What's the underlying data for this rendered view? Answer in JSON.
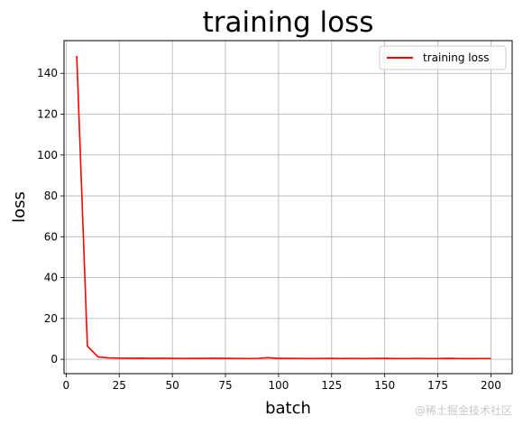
{
  "chart_data": {
    "type": "line",
    "title": "training loss",
    "xlabel": "batch",
    "ylabel": "loss",
    "xlim": [
      -1,
      210
    ],
    "ylim": [
      -7,
      156
    ],
    "xticks": [
      0,
      25,
      50,
      75,
      100,
      125,
      150,
      175,
      200
    ],
    "yticks": [
      0,
      20,
      40,
      60,
      80,
      100,
      120,
      140
    ],
    "grid": true,
    "legend_position": "top-right",
    "series": [
      {
        "name": "training loss",
        "color": "#ff0000",
        "x": [
          5,
          10,
          15,
          20,
          25,
          30,
          35,
          40,
          45,
          50,
          55,
          60,
          65,
          70,
          75,
          80,
          85,
          90,
          95,
          100,
          105,
          110,
          115,
          120,
          125,
          130,
          135,
          140,
          145,
          150,
          155,
          160,
          165,
          170,
          175,
          180,
          185,
          190,
          195,
          200
        ],
        "y": [
          148.5,
          6.5,
          1.2,
          0.7,
          0.6,
          0.55,
          0.6,
          0.5,
          0.55,
          0.5,
          0.45,
          0.5,
          0.5,
          0.55,
          0.5,
          0.45,
          0.4,
          0.45,
          0.8,
          0.5,
          0.5,
          0.45,
          0.4,
          0.45,
          0.5,
          0.4,
          0.45,
          0.4,
          0.45,
          0.5,
          0.4,
          0.4,
          0.45,
          0.4,
          0.4,
          0.5,
          0.4,
          0.35,
          0.4,
          0.4
        ]
      }
    ]
  },
  "watermark": "@稀土掘金技术社区"
}
